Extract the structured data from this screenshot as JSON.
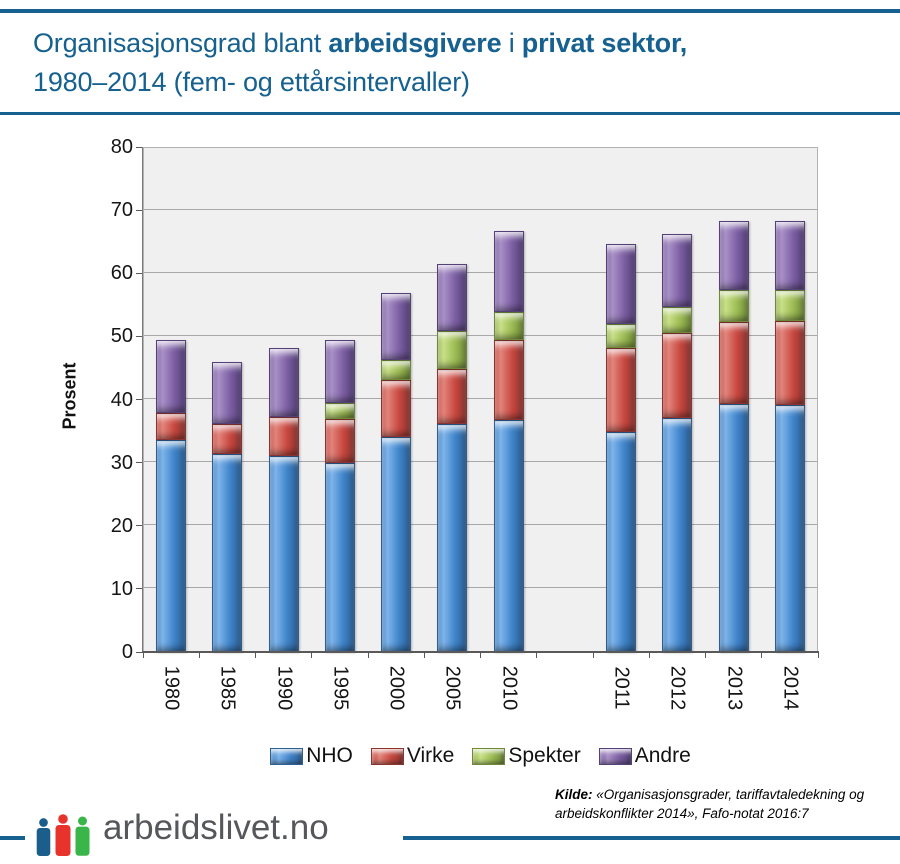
{
  "header": {
    "title_part1": "Organisasjonsgrad blant ",
    "title_bold1": "arbeidsgivere",
    "title_part2": " i ",
    "title_bold2": "privat sektor,",
    "title_line2": "1980–2014 (fem- og ettårsintervaller)"
  },
  "colors": {
    "accent": "#16618f",
    "plot_bg": "#f1f0f1",
    "gridline": "#a8a8a8",
    "axis": "#595959"
  },
  "chart_data": {
    "type": "bar",
    "stacked": true,
    "title": "Organisasjonsgrad blant arbeidsgivere i privat sektor, 1980–2014 (fem- og ettårsintervaller)",
    "xlabel": "",
    "ylabel": "Prosent",
    "ylim": [
      0,
      80
    ],
    "yticks": [
      0,
      10,
      20,
      30,
      40,
      50,
      60,
      70,
      80
    ],
    "grid": true,
    "legend_position": "bottom",
    "categories": [
      "1980",
      "1985",
      "1990",
      "1995",
      "2000",
      "2005",
      "2010",
      "2011",
      "2012",
      "2013",
      "2014"
    ],
    "slot_index": [
      0,
      1,
      2,
      3,
      4,
      5,
      6,
      8,
      9,
      10,
      11
    ],
    "total_slots": 12,
    "series": [
      {
        "name": "NHO",
        "base": "#3f83c9",
        "light": "#7db4ea",
        "dark": "#2b5f95",
        "values": [
          33.6,
          31.4,
          31.1,
          30.0,
          34.1,
          36.1,
          36.7,
          34.8,
          37.0,
          39.3,
          39.1
        ]
      },
      {
        "name": "Virke",
        "base": "#c7473f",
        "light": "#e2847b",
        "dark": "#8e3430",
        "values": [
          4.2,
          4.7,
          6.1,
          6.9,
          9.0,
          8.7,
          12.7,
          13.3,
          13.6,
          13.0,
          13.3
        ]
      },
      {
        "name": "Spekter",
        "base": "#9cbb53",
        "light": "#c8e086",
        "dark": "#6e8a38",
        "values": [
          0,
          0,
          0,
          2.5,
          3.2,
          6.1,
          4.5,
          3.9,
          4.1,
          5.0,
          4.9
        ]
      },
      {
        "name": "Andre",
        "base": "#7b5ea2",
        "light": "#a990c7",
        "dark": "#55417a",
        "values": [
          11.7,
          9.9,
          10.9,
          10.1,
          10.5,
          10.6,
          12.8,
          12.6,
          11.5,
          11.0,
          11.0
        ]
      }
    ],
    "totals": [
      49.5,
      46.0,
      48.1,
      49.5,
      56.8,
      61.5,
      66.7,
      64.6,
      66.2,
      68.3,
      68.3
    ]
  },
  "footer": {
    "logo_text": "arbeidslivet.no",
    "source_label": "Kilde:",
    "source_text": " «Organisasjonsgrader, tariffavtaledekning og arbeidskonflikter 2014», Fafo-notat 2016:7",
    "logo_person_colors": [
      "#1b5e8c",
      "#e8332c",
      "#3ab54a"
    ]
  }
}
